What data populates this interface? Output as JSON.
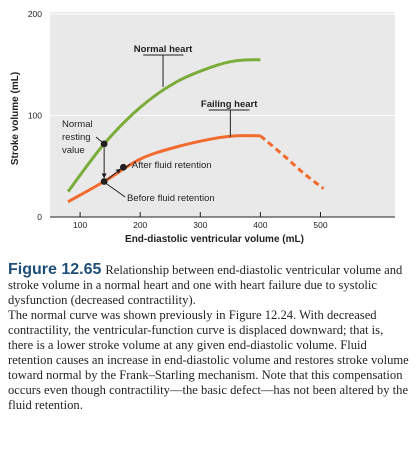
{
  "chart_data": {
    "type": "line",
    "xlabel": "End-diastolic ventricular volume (mL)",
    "ylabel": "Stroke volume (mL)",
    "x_ticks": [
      100,
      200,
      300,
      400,
      500
    ],
    "y_ticks": [
      0,
      100,
      200
    ],
    "xlim": [
      0,
      540
    ],
    "ylim": [
      0,
      200
    ],
    "grid": "horizontal",
    "series": [
      {
        "name": "Normal heart",
        "color": "#7aac3a",
        "points": [
          [
            80,
            25
          ],
          [
            140,
            72
          ],
          [
            200,
            108
          ],
          [
            260,
            133
          ],
          [
            320,
            148
          ],
          [
            360,
            154
          ],
          [
            400,
            155
          ]
        ]
      },
      {
        "name": "Failing heart",
        "color": "#f26a2c",
        "points": [
          [
            80,
            15
          ],
          [
            140,
            35
          ],
          [
            200,
            57
          ],
          [
            260,
            69
          ],
          [
            320,
            77
          ],
          [
            360,
            80
          ],
          [
            400,
            80
          ]
        ]
      },
      {
        "name": "Failing heart (descending)",
        "color": "#f26a2c",
        "dashed": true,
        "points": [
          [
            400,
            80
          ],
          [
            440,
            60
          ],
          [
            470,
            44
          ],
          [
            505,
            28
          ]
        ]
      }
    ],
    "markers": [
      {
        "x": 140,
        "y": 72,
        "label": "Normal resting value"
      },
      {
        "x": 140,
        "y": 35
      },
      {
        "x": 172,
        "y": 49
      }
    ],
    "annotations": [
      {
        "text": "Normal heart",
        "target": "Normal heart"
      },
      {
        "text": "Failing heart",
        "target": "Failing heart"
      },
      {
        "text": "Normal resting value"
      },
      {
        "text": "After fluid retention"
      },
      {
        "text": "Before fluid retention"
      }
    ]
  },
  "labels": {
    "normal_heart": "Normal heart",
    "failing_heart": "Failing heart",
    "normal_resting_1": "Normal",
    "normal_resting_2": "resting",
    "normal_resting_3": "value",
    "after": "After fluid retention",
    "before": "Before fluid retention"
  },
  "caption": {
    "figure": "Figure 12.65",
    "first": "Relationship between end-diastolic ventricular volume and stroke volume in a normal heart and one with heart failure due to systolic dysfunction (decreased contractility).",
    "second": "The normal curve was shown previously in Figure 12.24. With decreased contractility, the ventricular-function curve is displaced downward; that is, there is a lower stroke volume at any given end-diastolic volume. Fluid retention causes an increase in end-diastolic volume and restores stroke volume toward normal by the Frank–Starling mechanism. Note that this compensation occurs even though contractility—the basic defect—has not been altered by the fluid retention."
  }
}
